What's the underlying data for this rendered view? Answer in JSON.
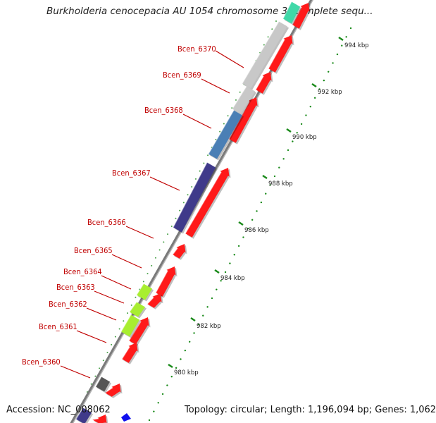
{
  "title": "Burkholderia cenocepacia AU 1054 chromosome 3, complete sequ...",
  "accession": "Accession: NC_008062",
  "topology": "Topology: circular; Length: 1,196,094 bp; Genes: 1,062",
  "genes": [
    {
      "id": "g6370",
      "label": "Bcen_6370"
    },
    {
      "id": "g6369",
      "label": "Bcen_6369"
    },
    {
      "id": "g6368",
      "label": "Bcen_6368"
    },
    {
      "id": "g6367",
      "label": "Bcen_6367"
    },
    {
      "id": "g6366",
      "label": "Bcen_6366"
    },
    {
      "id": "g6365",
      "label": "Bcen_6365"
    },
    {
      "id": "g6364",
      "label": "Bcen_6364"
    },
    {
      "id": "g6363",
      "label": "Bcen_6363"
    },
    {
      "id": "g6362",
      "label": "Bcen_6362"
    },
    {
      "id": "g6361",
      "label": "Bcen_6361"
    },
    {
      "id": "g6360",
      "label": "Bcen_6360"
    }
  ],
  "ticks": [
    "994 kbp",
    "992 kbp",
    "990 kbp",
    "988 kbp",
    "986 kbp",
    "984 kbp",
    "982 kbp",
    "980 kbp"
  ],
  "colors": {
    "forward_cds": "#ff1a1a",
    "gray_feature": "#c8c8c8",
    "blue_feature": "#4a7fb5",
    "purple_feature": "#3f3a8a",
    "lime_feature": "#a8ee30",
    "dark_feature": "#555555",
    "teal_feature": "#40d8a8",
    "tick_green": "#1a8a1a",
    "label_red": "#c00000"
  }
}
